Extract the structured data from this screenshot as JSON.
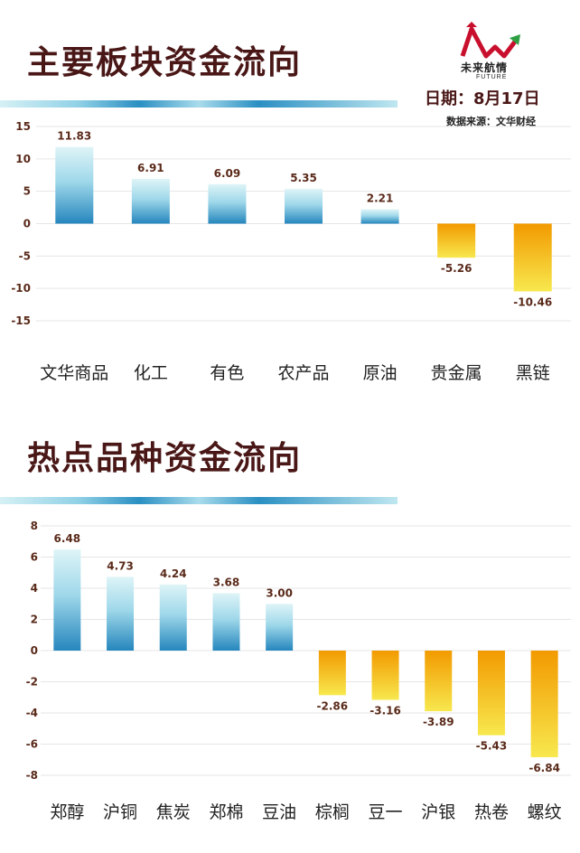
{
  "header": {
    "logo_text": "未来航情",
    "logo_sub": "FUTURE",
    "date": "日期：8月17日",
    "source": "数据来源：文华财经"
  },
  "colors": {
    "title": "#4a1717",
    "pos_dark": "#2a8bbf",
    "pos_light": "#d8f2f6",
    "neg_dark": "#f5a200",
    "neg_light": "#f7e34a"
  },
  "chart_data": [
    {
      "type": "bar",
      "title": "主要板块资金流向",
      "categories": [
        "文华商品",
        "化工",
        "有色",
        "农产品",
        "原油",
        "贵金属",
        "黑链"
      ],
      "values": [
        11.83,
        6.91,
        6.09,
        5.35,
        2.21,
        -5.26,
        -10.46
      ],
      "value_labels": [
        "11.83",
        "6.91",
        "6.09",
        "5.35",
        "2.21",
        "-5.26",
        "-10.46"
      ],
      "yticks": [
        15,
        10,
        5,
        0,
        -5,
        -10,
        -15
      ],
      "ylim": [
        -15,
        15
      ],
      "grid": true
    },
    {
      "type": "bar",
      "title": "热点品种资金流向",
      "categories": [
        "郑醇",
        "沪铜",
        "焦炭",
        "郑棉",
        "豆油",
        "棕榈",
        "豆一",
        "沪银",
        "热卷",
        "螺纹"
      ],
      "values": [
        6.48,
        4.73,
        4.24,
        3.68,
        3.0,
        -2.86,
        -3.16,
        -3.89,
        -5.43,
        -6.84
      ],
      "value_labels": [
        "6.48",
        "4.73",
        "4.24",
        "3.68",
        "3.00",
        "-2.86",
        "-3.16",
        "-3.89",
        "-5.43",
        "-6.84"
      ],
      "yticks": [
        8,
        6,
        4,
        2,
        0,
        -2,
        -4,
        -6,
        -8
      ],
      "ylim": [
        -8,
        8
      ],
      "grid": true
    }
  ]
}
